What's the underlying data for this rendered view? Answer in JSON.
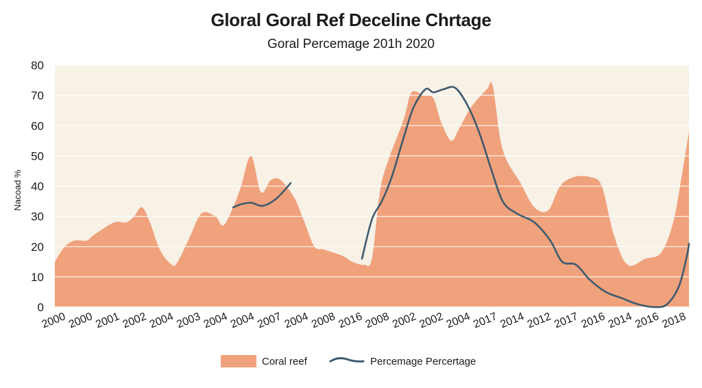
{
  "chart_data": {
    "type": "area",
    "title": "Gloral Goral Ref Deceline Chrtage",
    "subtitle": "Goral Percemage 201h 2020",
    "ylabel": "Nacoad %",
    "ylim": [
      0,
      80
    ],
    "yticks": [
      0,
      10,
      20,
      30,
      40,
      50,
      60,
      70,
      80
    ],
    "grid": true,
    "legend_position": "bottom-center",
    "categories": [
      "2000",
      "2000",
      "2001",
      "2002",
      "2004",
      "2003",
      "2004",
      "2004",
      "2007",
      "2004",
      "2008",
      "2016",
      "2008",
      "2002",
      "2002",
      "2004",
      "2017",
      "2014",
      "2012",
      "2017",
      "2016",
      "2014",
      "2016",
      "2018"
    ],
    "series": [
      {
        "name": "Coral reef",
        "type": "area",
        "color": "#f0a27c",
        "points": [
          [
            0.0,
            15
          ],
          [
            0.5,
            20
          ],
          [
            1.0,
            22
          ],
          [
            1.6,
            22
          ],
          [
            2.0,
            24
          ],
          [
            3.0,
            28
          ],
          [
            3.6,
            28
          ],
          [
            4.0,
            30
          ],
          [
            4.4,
            33
          ],
          [
            4.8,
            28
          ],
          [
            5.3,
            19
          ],
          [
            5.9,
            14
          ],
          [
            6.2,
            15
          ],
          [
            6.8,
            23
          ],
          [
            7.4,
            31
          ],
          [
            8.1,
            30
          ],
          [
            8.5,
            27
          ],
          [
            9.0,
            33
          ],
          [
            9.4,
            40
          ],
          [
            9.9,
            50
          ],
          [
            10.4,
            38
          ],
          [
            10.9,
            42
          ],
          [
            11.4,
            42
          ],
          [
            12.1,
            36
          ],
          [
            12.6,
            28
          ],
          [
            13.1,
            20
          ],
          [
            13.6,
            19
          ],
          [
            14.5,
            17
          ],
          [
            15.0,
            15
          ],
          [
            15.6,
            14
          ],
          [
            16.0,
            16
          ],
          [
            16.4,
            38
          ],
          [
            16.8,
            48
          ],
          [
            17.6,
            62
          ],
          [
            18.0,
            71
          ],
          [
            18.6,
            70
          ],
          [
            19.1,
            69
          ],
          [
            19.5,
            61
          ],
          [
            20.0,
            55
          ],
          [
            20.4,
            59
          ],
          [
            21.0,
            66
          ],
          [
            21.8,
            72
          ],
          [
            22.1,
            73
          ],
          [
            22.6,
            52
          ],
          [
            23.5,
            41
          ],
          [
            24.2,
            33
          ],
          [
            24.9,
            32
          ],
          [
            25.5,
            40
          ],
          [
            26.2,
            43
          ],
          [
            27.0,
            43
          ],
          [
            27.6,
            40
          ],
          [
            28.2,
            24
          ],
          [
            28.9,
            14
          ],
          [
            29.8,
            16
          ],
          [
            30.6,
            18
          ],
          [
            31.2,
            28
          ],
          [
            31.6,
            42
          ],
          [
            32.0,
            58
          ]
        ]
      },
      {
        "name": "Percemage Percertage",
        "type": "line",
        "color": "#3e5a6e",
        "segments": [
          [
            [
              9.0,
              33
            ],
            [
              9.4,
              34
            ],
            [
              9.9,
              34.5
            ],
            [
              10.5,
              33.5
            ],
            [
              11.2,
              36
            ],
            [
              11.9,
              41
            ]
          ],
          [
            [
              15.5,
              16
            ],
            [
              16.0,
              29
            ],
            [
              16.5,
              35
            ],
            [
              17.0,
              43
            ],
            [
              17.6,
              56
            ],
            [
              18.1,
              66
            ],
            [
              18.7,
              72
            ],
            [
              19.1,
              71
            ],
            [
              19.6,
              72
            ],
            [
              20.2,
              72.5
            ],
            [
              20.8,
              67
            ],
            [
              21.4,
              58
            ],
            [
              22.0,
              46
            ],
            [
              22.6,
              35
            ],
            [
              23.3,
              31
            ],
            [
              24.2,
              28
            ],
            [
              25.0,
              22
            ],
            [
              25.6,
              15
            ],
            [
              26.3,
              14
            ],
            [
              27.0,
              9
            ],
            [
              27.8,
              5
            ],
            [
              28.6,
              3
            ],
            [
              29.4,
              1
            ],
            [
              30.3,
              0
            ],
            [
              30.9,
              1
            ],
            [
              31.5,
              7
            ],
            [
              31.9,
              17
            ],
            [
              32.0,
              21
            ]
          ]
        ]
      }
    ]
  }
}
